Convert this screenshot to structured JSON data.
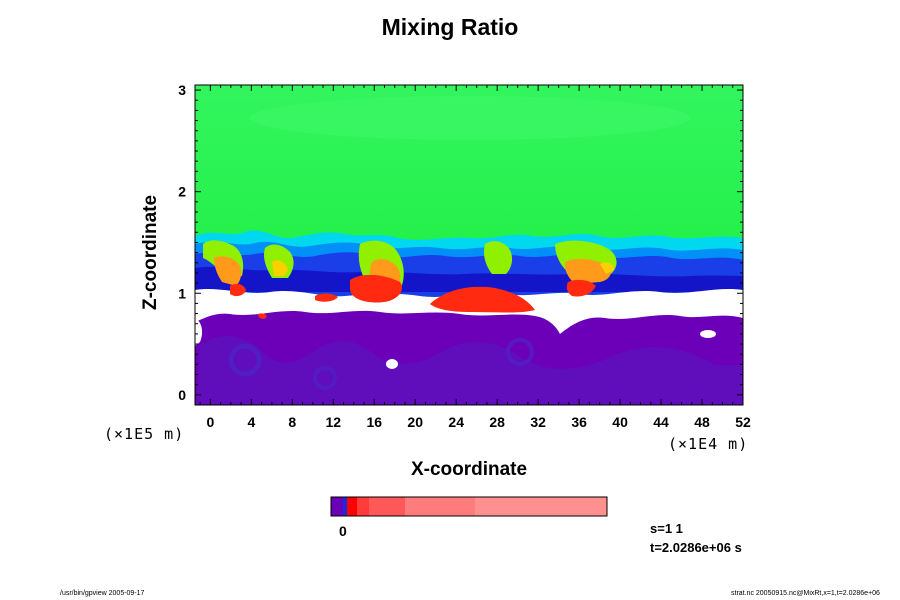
{
  "chart_data": {
    "type": "heatmap",
    "title": "Mixing Ratio",
    "xlabel": "X-coordinate",
    "ylabel": "Z-coordinate",
    "x_exponent": "(×1E4 m)",
    "y_exponent": "(×1E5 m)",
    "xlim": [
      -1.5,
      52
    ],
    "ylim": [
      -0.1,
      3.05
    ],
    "x_ticks": [
      "0",
      "4",
      "8",
      "12",
      "16",
      "20",
      "24",
      "28",
      "32",
      "36",
      "40",
      "44",
      "48",
      "52"
    ],
    "y_ticks": [
      "0",
      "1",
      "2",
      "3"
    ],
    "colors": {
      "upper_green": "#33f560",
      "lower_green": "#00f030",
      "yellow_green": "#90f000",
      "cyan": "#00d8f0",
      "light_blue": "#0090f8",
      "blue": "#1840e8",
      "dark_blue": "#1414c8",
      "purple": "#7000b8",
      "violet": "#5c18c0",
      "red": "#ff2a10",
      "orange": "#ff9a1a",
      "white_gap": "#ffffff"
    },
    "colorbar": {
      "label": "0",
      "segments": [
        "#6a00b5",
        "#1a2ad8",
        "#ff0000",
        "#ff3b3b",
        "#ff5858",
        "#ff7c7c",
        "#ff9090"
      ]
    },
    "annotations": {
      "step": "s=1 1",
      "time": "t=2.0286e+06 s"
    }
  },
  "footer": {
    "left": "/usr/bin/gpview 2005-09-17",
    "right": "strat.nc 20050915.nc@MixRt,x=1,t=2.0286e+06"
  }
}
